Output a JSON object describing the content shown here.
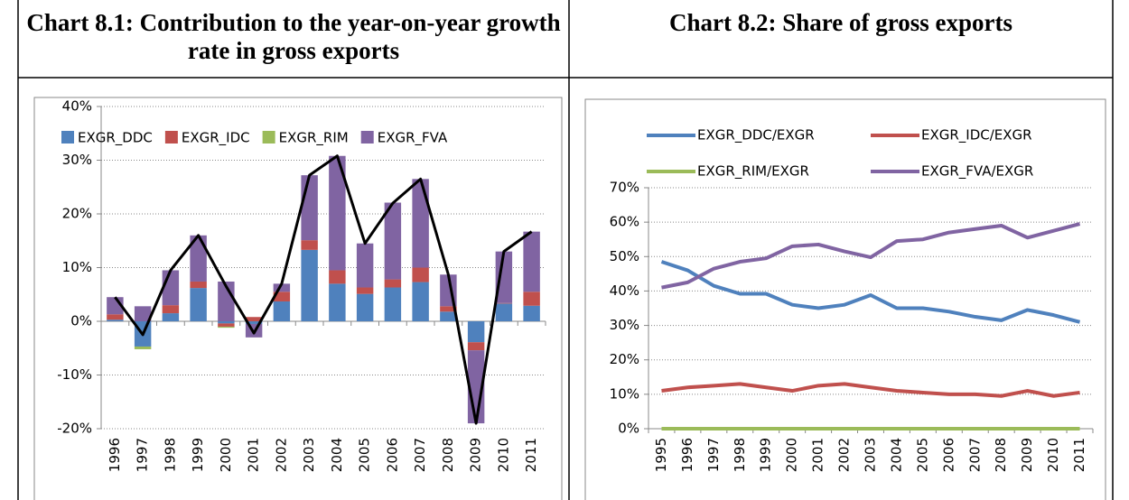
{
  "chart_data": [
    {
      "type": "bar",
      "stacked": true,
      "title": "Chart 8.1: Contribution to the year-on-year growth rate in gross exports",
      "categories": [
        "1996",
        "1997",
        "1998",
        "1999",
        "2000",
        "2001",
        "2002",
        "2003",
        "2004",
        "2005",
        "2006",
        "2007",
        "2008",
        "2009",
        "2010",
        "2011"
      ],
      "series": [
        {
          "name": "EXGR_DDC",
          "color": "#4f81bd",
          "values": [
            0.3,
            -4.7,
            1.5,
            6.2,
            -0.4,
            -0.5,
            3.7,
            13.3,
            7.0,
            5.1,
            6.3,
            7.3,
            1.8,
            -3.9,
            3.3,
            2.9
          ]
        },
        {
          "name": "EXGR_IDC",
          "color": "#c0504d",
          "values": [
            1.0,
            0,
            1.5,
            1.2,
            -0.6,
            0.8,
            1.8,
            1.8,
            2.5,
            1.2,
            1.5,
            2.7,
            1.0,
            -1.5,
            0.1,
            2.6
          ]
        },
        {
          "name": "EXGR_RIM",
          "color": "#9bbb59",
          "values": [
            0,
            -0.5,
            0,
            0,
            -0.2,
            0,
            0,
            0,
            0,
            0,
            0,
            0,
            0,
            0,
            0,
            0
          ]
        },
        {
          "name": "EXGR_FVA",
          "color": "#8064a2",
          "values": [
            3.2,
            2.8,
            6.5,
            8.6,
            7.4,
            -2.5,
            1.5,
            12.1,
            21.3,
            8.2,
            14.3,
            16.5,
            5.9,
            -13.6,
            9.6,
            11.2
          ]
        }
      ],
      "total": {
        "color": "#000000",
        "values": [
          4.5,
          -2.5,
          9.5,
          16.0,
          6.5,
          -2.2,
          7.0,
          27.2,
          30.8,
          14.5,
          22.0,
          26.5,
          8.7,
          -19.0,
          13.0,
          16.7
        ]
      },
      "ylim": [
        -20,
        40
      ],
      "yticks": [
        {
          "value": -20,
          "label": "-20%"
        },
        {
          "value": -10,
          "label": "-10%"
        },
        {
          "value": 0,
          "label": "0%"
        },
        {
          "value": 10,
          "label": "10%"
        },
        {
          "value": 20,
          "label": "20%"
        },
        {
          "value": 30,
          "label": "30%"
        },
        {
          "value": 40,
          "label": "40%"
        }
      ],
      "grid": true
    },
    {
      "type": "line",
      "title": "Chart 8.2: Share of gross exports",
      "categories": [
        "1995",
        "1996",
        "1997",
        "1998",
        "1999",
        "2000",
        "2001",
        "2002",
        "2003",
        "2004",
        "2005",
        "2006",
        "2007",
        "2008",
        "2009",
        "2010",
        "2011"
      ],
      "series": [
        {
          "name": "EXGR_DDC/EXGR",
          "color": "#4f81bd",
          "values": [
            48.5,
            46,
            41.5,
            39.2,
            39.2,
            36,
            35,
            36,
            38.8,
            35,
            35,
            34,
            32.5,
            31.5,
            34.5,
            33,
            31
          ]
        },
        {
          "name": "EXGR_IDC/EXGR",
          "color": "#c0504d",
          "values": [
            11,
            12,
            12.5,
            13,
            12,
            11,
            12.5,
            13,
            12,
            11,
            10.5,
            10,
            10,
            9.5,
            11,
            9.5,
            10.5
          ]
        },
        {
          "name": "EXGR_RIM/EXGR",
          "color": "#9bbb59",
          "values": [
            0,
            0,
            0,
            0,
            0,
            0,
            0,
            0,
            0,
            0,
            0,
            0,
            0,
            0,
            0,
            0,
            0
          ]
        },
        {
          "name": "EXGR_FVA/EXGR",
          "color": "#8064a2",
          "values": [
            41,
            42.5,
            46.5,
            48.5,
            49.5,
            53,
            53.5,
            51.5,
            49.8,
            54.5,
            55,
            57,
            58,
            59,
            55.5,
            57.5,
            59.5
          ]
        }
      ],
      "ylim": [
        0,
        70
      ],
      "yticks": [
        {
          "value": 0,
          "label": "0%"
        },
        {
          "value": 10,
          "label": "10%"
        },
        {
          "value": 20,
          "label": "20%"
        },
        {
          "value": 30,
          "label": "30%"
        },
        {
          "value": 40,
          "label": "40%"
        },
        {
          "value": 50,
          "label": "50%"
        },
        {
          "value": 60,
          "label": "60%"
        },
        {
          "value": 70,
          "label": "70%"
        }
      ],
      "grid": true
    }
  ]
}
